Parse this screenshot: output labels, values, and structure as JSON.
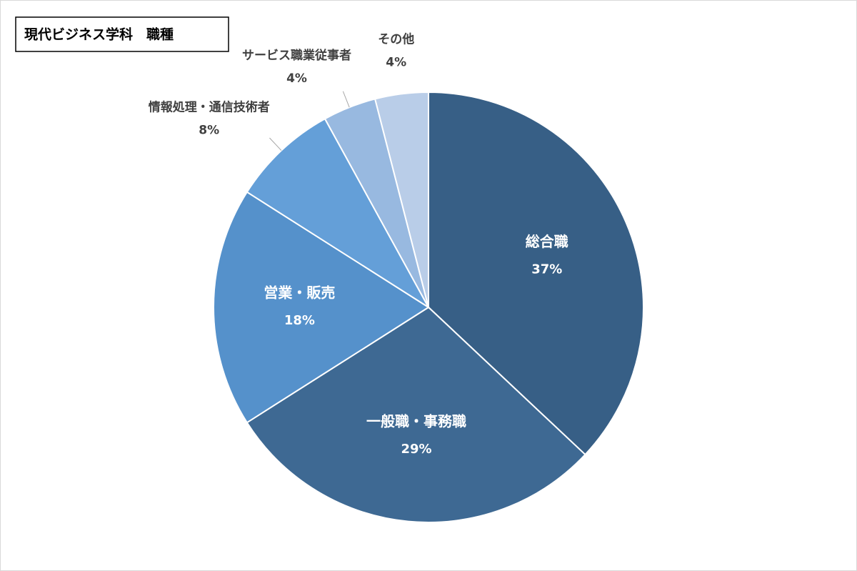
{
  "chart_data": {
    "type": "pie",
    "title": "現代ビジネス学科　職種",
    "categories": [
      "総合職",
      "一般職・事務職",
      "営業・販売",
      "情報処理・通信技術者",
      "サービス職業従事者",
      "その他"
    ],
    "values": [
      37,
      29,
      18,
      8,
      4,
      4
    ],
    "value_labels": [
      "37%",
      "29%",
      "18%",
      "8%",
      "4%",
      "4%"
    ],
    "colors": [
      "#375f86",
      "#3e6993",
      "#5591cb",
      "#649fd8",
      "#98b9e0",
      "#b9cde8"
    ]
  }
}
